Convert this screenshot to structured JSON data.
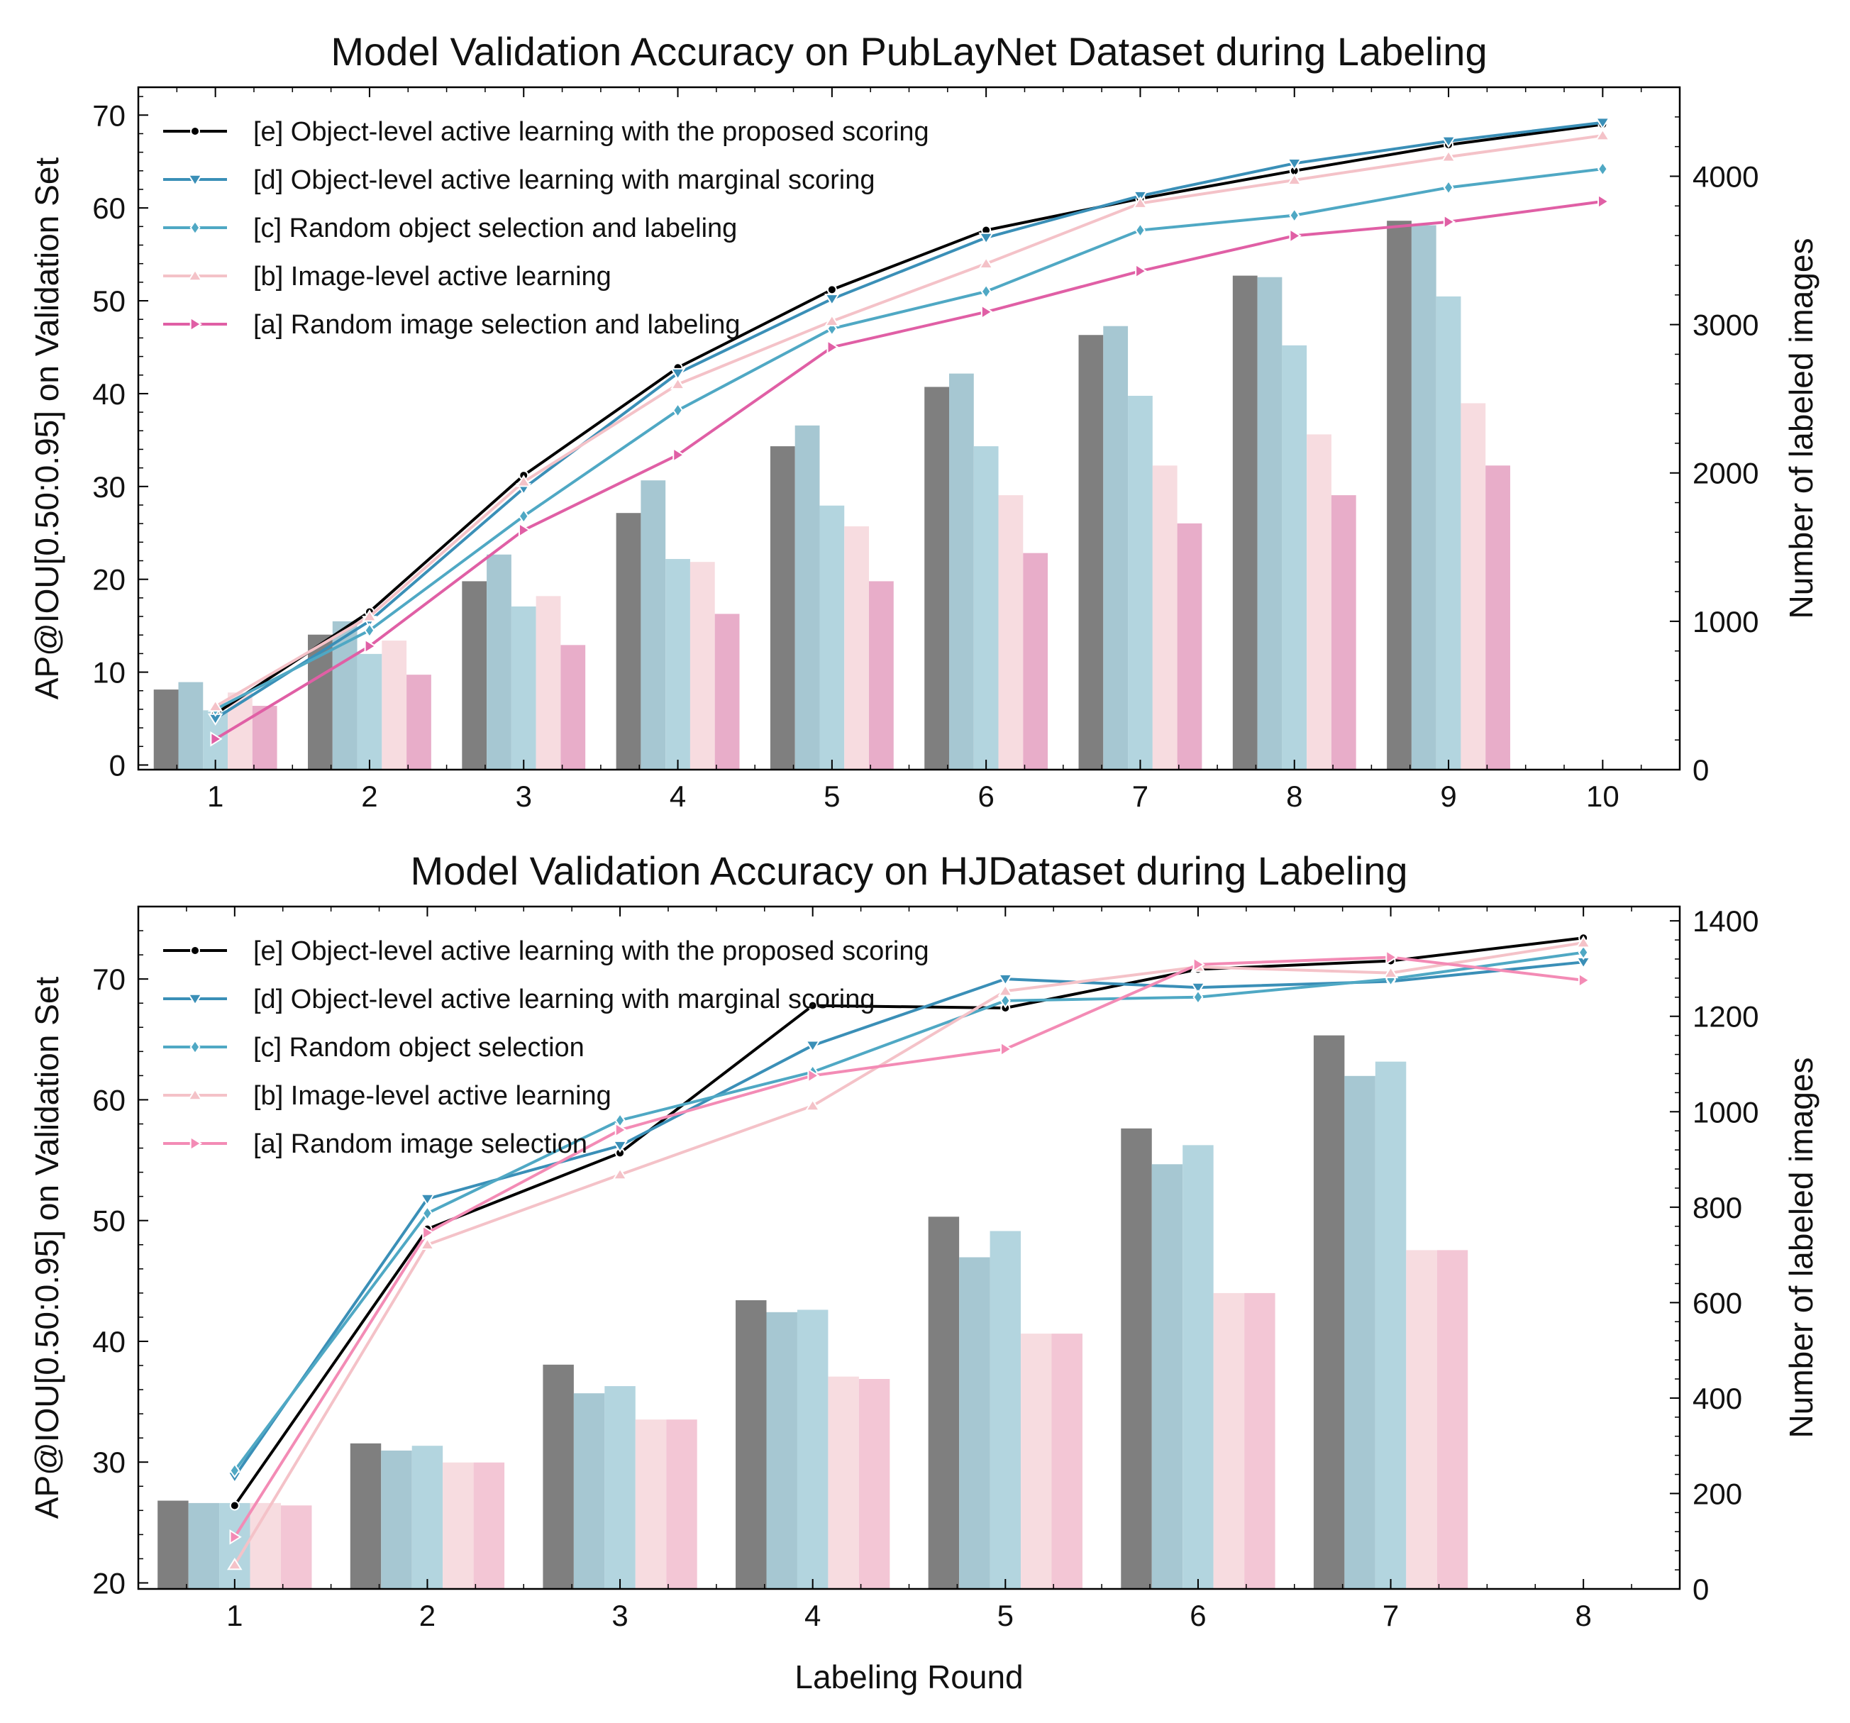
{
  "chart_data": [
    {
      "type": "bar+line",
      "title": "Model Validation Accuracy on PubLayNet Dataset during Labeling",
      "xlabel": "",
      "ylabel": "AP@IOU[0.50:0.95] on Validation Set",
      "ylabel_right": "Number of labeled images",
      "x": [
        1,
        2,
        3,
        4,
        5,
        6,
        7,
        8,
        9,
        10
      ],
      "x_tick_labels": [
        "1",
        "2",
        "3",
        "4",
        "5",
        "6",
        "7",
        "8",
        "9",
        "10"
      ],
      "ylim": [
        -0.5,
        73
      ],
      "yticks": [
        0,
        10,
        20,
        30,
        40,
        50,
        60,
        70
      ],
      "ytick_labels": [
        "0",
        "10",
        "20",
        "30",
        "40",
        "50",
        "60",
        "70"
      ],
      "ylim_right": [
        0,
        4600
      ],
      "yticks_right": [
        0,
        1000,
        2000,
        3000,
        4000
      ],
      "ytick_labels_right": [
        "0",
        "1000",
        "2000",
        "3000",
        "4000"
      ],
      "legend_position": "top-left",
      "grid": false,
      "series": [
        {
          "key": "e",
          "name": "[e] Object-level active learning with the proposed scoring",
          "color": "#000000",
          "marker": "circle",
          "values": [
            5.5,
            16.5,
            31.2,
            42.8,
            51.2,
            57.6,
            61.0,
            64.0,
            66.8,
            69.0
          ]
        },
        {
          "key": "d",
          "name": "[d] Object-level active learning with marginal scoring",
          "color": "#3a8fb7",
          "marker": "tri-down",
          "values": [
            5.0,
            15.5,
            29.8,
            42.2,
            50.2,
            56.8,
            61.3,
            64.8,
            67.2,
            69.2
          ]
        },
        {
          "key": "c",
          "name": "[c] Random object selection and labeling",
          "color": "#4fa8c4",
          "marker": "diamond",
          "values": [
            6.0,
            14.5,
            26.8,
            38.2,
            47.0,
            51.0,
            57.6,
            59.2,
            62.2,
            64.2
          ]
        },
        {
          "key": "b",
          "name": "[b] Image-level active learning",
          "color": "#f4c2c8",
          "marker": "tri-up",
          "values": [
            6.3,
            16.0,
            30.5,
            41.0,
            47.8,
            54.0,
            60.5,
            63.0,
            65.5,
            67.8
          ]
        },
        {
          "key": "a",
          "name": "[a] Random image selection and labeling",
          "color": "#e05fa5",
          "marker": "tri-right",
          "values": [
            2.8,
            12.8,
            25.3,
            33.4,
            45.0,
            48.8,
            53.2,
            57.0,
            58.5,
            60.7
          ]
        }
      ],
      "bar_axis": "right",
      "bar_series": [
        {
          "key": "e",
          "color": "#7f7f7f",
          "values": [
            540,
            910,
            1270,
            1730,
            2180,
            2580,
            2930,
            3330,
            3700
          ]
        },
        {
          "key": "d",
          "color": "#a6c7d2",
          "values": [
            590,
            1000,
            1450,
            1950,
            2320,
            2670,
            2990,
            3320,
            3670
          ]
        },
        {
          "key": "c",
          "color": "#b3d5df",
          "values": [
            400,
            780,
            1100,
            1420,
            1780,
            2180,
            2520,
            2860,
            3190
          ]
        },
        {
          "key": "b",
          "color": "#f7dce0",
          "values": [
            520,
            870,
            1170,
            1400,
            1640,
            1850,
            2050,
            2260,
            2470
          ]
        },
        {
          "key": "a",
          "color": "#e8adc9",
          "values": [
            430,
            640,
            840,
            1050,
            1270,
            1460,
            1660,
            1850,
            2050
          ]
        }
      ]
    },
    {
      "type": "bar+line",
      "title": "Model Validation Accuracy on HJDataset during Labeling",
      "xlabel": "Labeling Round",
      "ylabel": "AP@IOU[0.50:0.95] on Validation Set",
      "ylabel_right": "Number of labeled images",
      "x": [
        1,
        2,
        3,
        4,
        5,
        6,
        7,
        8
      ],
      "x_tick_labels": [
        "1",
        "2",
        "3",
        "4",
        "5",
        "6",
        "7",
        "8"
      ],
      "ylim": [
        19.5,
        76
      ],
      "yticks": [
        20,
        30,
        40,
        50,
        60,
        70
      ],
      "ytick_labels": [
        "20",
        "30",
        "40",
        "50",
        "60",
        "70"
      ],
      "ylim_right": [
        0,
        1430
      ],
      "yticks_right": [
        0,
        200,
        400,
        600,
        800,
        1000,
        1200,
        1400
      ],
      "ytick_labels_right": [
        "0",
        "200",
        "400",
        "600",
        "800",
        "1000",
        "1200",
        "1400"
      ],
      "legend_position": "top-left",
      "grid": false,
      "series": [
        {
          "key": "e",
          "name": "[e] Object-level active learning with the proposed scoring",
          "color": "#000000",
          "marker": "circle",
          "values": [
            26.4,
            49.3,
            55.6,
            67.8,
            67.6,
            70.8,
            71.5,
            73.4
          ]
        },
        {
          "key": "d",
          "name": "[d] Object-level active learning with marginal scoring",
          "color": "#3a8fb7",
          "marker": "tri-down",
          "values": [
            28.8,
            51.8,
            56.2,
            64.5,
            70.0,
            69.3,
            69.8,
            71.4
          ]
        },
        {
          "key": "c",
          "name": "[c] Random object selection",
          "color": "#4fa8c4",
          "marker": "diamond",
          "values": [
            29.3,
            50.6,
            58.3,
            62.3,
            68.2,
            68.5,
            70.0,
            72.2
          ]
        },
        {
          "key": "b",
          "name": "[b] Image-level active learning",
          "color": "#f4c2c8",
          "marker": "tri-up",
          "values": [
            21.5,
            48.0,
            53.8,
            59.5,
            69.0,
            71.0,
            70.5,
            73.0
          ]
        },
        {
          "key": "a",
          "name": "[a] Random image selection",
          "color": "#f38bb5",
          "marker": "tri-right",
          "values": [
            23.8,
            49.0,
            57.5,
            62.0,
            64.2,
            71.2,
            71.8,
            69.9
          ]
        }
      ],
      "bar_axis": "right",
      "bar_series": [
        {
          "key": "e",
          "color": "#7f7f7f",
          "values": [
            185,
            305,
            470,
            605,
            780,
            965,
            1160
          ]
        },
        {
          "key": "d",
          "color": "#a6c7d2",
          "values": [
            180,
            290,
            410,
            580,
            695,
            890,
            1075
          ]
        },
        {
          "key": "c",
          "color": "#b3d5df",
          "values": [
            180,
            300,
            425,
            585,
            750,
            930,
            1105
          ]
        },
        {
          "key": "b",
          "color": "#f7dce0",
          "values": [
            180,
            265,
            355,
            445,
            535,
            620,
            710
          ]
        },
        {
          "key": "a",
          "color": "#f3c6d5",
          "values": [
            175,
            265,
            355,
            440,
            535,
            620,
            710
          ]
        }
      ]
    }
  ]
}
